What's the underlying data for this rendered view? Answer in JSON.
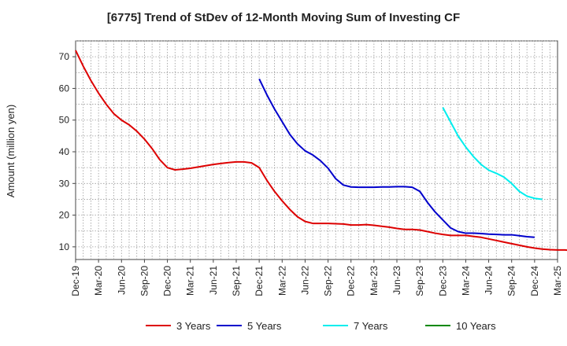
{
  "chart_data": {
    "type": "line",
    "title": "[6775]  Trend of StDev of 12-Month Moving Sum of Investing CF",
    "ylabel": "Amount (million yen)",
    "xlabel": "",
    "ylim": [
      6,
      75
    ],
    "yticks": [
      10,
      20,
      30,
      40,
      50,
      60,
      70
    ],
    "xtick_labels": [
      "Dec-19",
      "Mar-20",
      "Jun-20",
      "Sep-20",
      "Dec-20",
      "Mar-21",
      "Jun-21",
      "Sep-21",
      "Dec-21",
      "Mar-22",
      "Jun-22",
      "Sep-22",
      "Dec-22",
      "Mar-23",
      "Jun-23",
      "Sep-23",
      "Dec-23",
      "Mar-24",
      "Jun-24",
      "Sep-24",
      "Dec-24",
      "Mar-25"
    ],
    "grid": true,
    "legend_position": "bottom",
    "series": [
      {
        "name": "3 Years",
        "color": "#dd0000",
        "start_month": 0,
        "values": [
          72.0,
          67.0,
          62.5,
          58.5,
          55.0,
          52.0,
          50.0,
          48.5,
          46.5,
          44.0,
          41.0,
          37.5,
          35.0,
          34.3,
          34.5,
          34.8,
          35.2,
          35.6,
          36.0,
          36.3,
          36.6,
          36.8,
          36.8,
          36.5,
          35.0,
          31.0,
          27.5,
          24.5,
          21.8,
          19.5,
          18.0,
          17.4,
          17.4,
          17.4,
          17.3,
          17.2,
          16.9,
          16.9,
          17.0,
          16.8,
          16.5,
          16.2,
          15.8,
          15.5,
          15.5,
          15.3,
          14.8,
          14.3,
          13.9,
          13.6,
          13.6,
          13.6,
          13.3,
          13.0,
          12.5,
          12.0,
          11.5,
          11.0,
          10.5,
          10.0,
          9.6,
          9.3,
          9.1,
          9.0,
          9.0,
          8.8,
          8.5,
          8.3,
          8.1,
          8.0
        ]
      },
      {
        "name": "5 Years",
        "color": "#0000cc",
        "start_month": 24,
        "values": [
          63.0,
          58.0,
          53.5,
          49.5,
          45.5,
          42.5,
          40.3,
          39.0,
          37.2,
          34.8,
          31.5,
          29.5,
          28.9,
          28.8,
          28.8,
          28.8,
          28.9,
          28.9,
          29.0,
          29.0,
          28.8,
          27.5,
          24.0,
          21.0,
          18.5,
          16.0,
          14.8,
          14.3,
          14.3,
          14.2,
          14.0,
          13.9,
          13.8,
          13.8,
          13.5,
          13.2,
          13.0
        ]
      },
      {
        "name": "7 Years",
        "color": "#00eeee",
        "start_month": 48,
        "values": [
          54.0,
          49.5,
          45.0,
          41.5,
          38.5,
          36.0,
          34.2,
          33.2,
          32.0,
          30.0,
          27.5,
          26.0,
          25.3,
          25.0
        ]
      },
      {
        "name": "10 Years",
        "color": "#008800",
        "start_month": 0,
        "values": []
      }
    ]
  }
}
